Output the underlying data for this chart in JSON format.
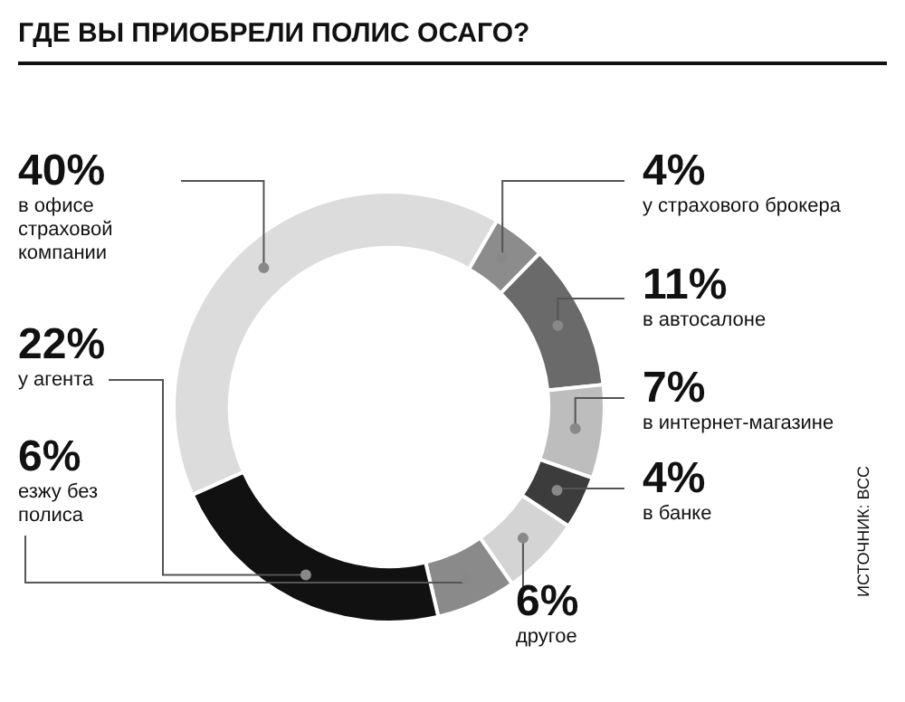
{
  "chart_data": {
    "type": "donut",
    "title": "ГДЕ ВЫ ПРИОБРЕЛИ ПОЛИС ОСАГО?",
    "categories": [
      "у страхового брокера",
      "в автосалоне",
      "в интернет-магазине",
      "в банке",
      "другое",
      "езжу без полиса",
      "у агента",
      "в офисе страховой компании"
    ],
    "values": [
      4,
      11,
      7,
      4,
      6,
      6,
      22,
      40
    ],
    "colors": [
      "#8c8c8c",
      "#6a6a6a",
      "#bdbdbd",
      "#3c3c3c",
      "#d4d4d4",
      "#8a8a8a",
      "#111111",
      "#dcdcdc"
    ],
    "value_labels": [
      "4%",
      "11%",
      "7%",
      "4%",
      "6%",
      "6%",
      "22%",
      "40%"
    ],
    "annotations": [
      "ИСТОЧНИК: ВСС"
    ]
  }
}
